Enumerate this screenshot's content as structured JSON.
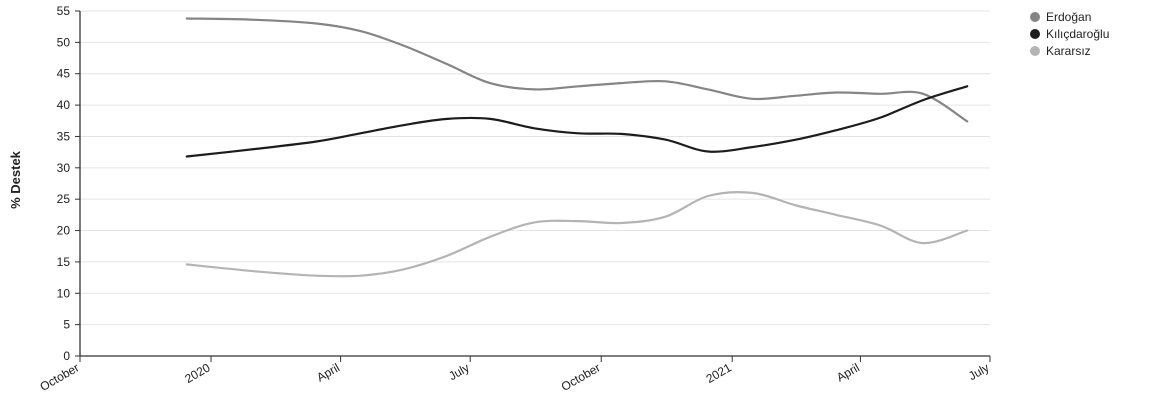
{
  "chart_data": {
    "type": "line",
    "title": "",
    "xlabel": "",
    "ylabel": "% Destek",
    "ylim": [
      0,
      55
    ],
    "yticks": [
      0,
      5,
      10,
      15,
      20,
      25,
      30,
      35,
      40,
      45,
      50,
      55
    ],
    "xlim": [
      "2019-10-01",
      "2021-07-01"
    ],
    "xtick_labels": [
      {
        "date": "2019-10-01",
        "label": "October"
      },
      {
        "date": "2020-01-01",
        "label": "2020"
      },
      {
        "date": "2020-04-01",
        "label": "April"
      },
      {
        "date": "2020-07-01",
        "label": "July"
      },
      {
        "date": "2020-10-01",
        "label": "October"
      },
      {
        "date": "2021-01-01",
        "label": "2021"
      },
      {
        "date": "2021-04-01",
        "label": "April"
      },
      {
        "date": "2021-07-01",
        "label": "July"
      }
    ],
    "grid": "horizontal",
    "legend_position": "top-right",
    "series": [
      {
        "name": "Erdoğan",
        "color": "#858585",
        "x": [
          "2019-12-15",
          "2020-02-01",
          "2020-03-15",
          "2020-04-15",
          "2020-05-15",
          "2020-06-15",
          "2020-07-15",
          "2020-08-15",
          "2020-09-15",
          "2020-10-15",
          "2020-11-15",
          "2020-12-15",
          "2021-01-15",
          "2021-02-15",
          "2021-03-15",
          "2021-04-15",
          "2021-05-15",
          "2021-06-15"
        ],
        "y": [
          53.8,
          53.6,
          53.0,
          51.8,
          49.5,
          46.5,
          43.5,
          42.5,
          43.0,
          43.5,
          43.8,
          42.5,
          41.0,
          41.5,
          42.0,
          41.8,
          41.8,
          37.4
        ]
      },
      {
        "name": "Kılıçdaroğlu",
        "color": "#1c1c1c",
        "x": [
          "2019-12-15",
          "2020-02-01",
          "2020-03-15",
          "2020-04-15",
          "2020-05-15",
          "2020-06-15",
          "2020-07-15",
          "2020-08-15",
          "2020-09-15",
          "2020-10-15",
          "2020-11-15",
          "2020-12-15",
          "2021-01-15",
          "2021-02-15",
          "2021-03-15",
          "2021-04-15",
          "2021-05-15",
          "2021-06-15"
        ],
        "y": [
          31.8,
          33.0,
          34.2,
          35.5,
          36.8,
          37.8,
          37.8,
          36.3,
          35.5,
          35.4,
          34.5,
          32.6,
          33.3,
          34.5,
          36.0,
          38.0,
          40.8,
          43.0
        ]
      },
      {
        "name": "Kararsız",
        "color": "#b4b4b4",
        "x": [
          "2019-12-15",
          "2020-02-01",
          "2020-03-15",
          "2020-04-15",
          "2020-05-15",
          "2020-06-15",
          "2020-07-15",
          "2020-08-15",
          "2020-09-15",
          "2020-10-15",
          "2020-11-15",
          "2020-12-15",
          "2021-01-15",
          "2021-02-15",
          "2021-03-15",
          "2021-04-15",
          "2021-05-15",
          "2021-06-15"
        ],
        "y": [
          14.6,
          13.5,
          12.8,
          12.8,
          13.8,
          16.0,
          19.0,
          21.3,
          21.5,
          21.2,
          22.2,
          25.5,
          26.0,
          24.0,
          22.5,
          20.8,
          18.0,
          20.0
        ]
      }
    ]
  }
}
